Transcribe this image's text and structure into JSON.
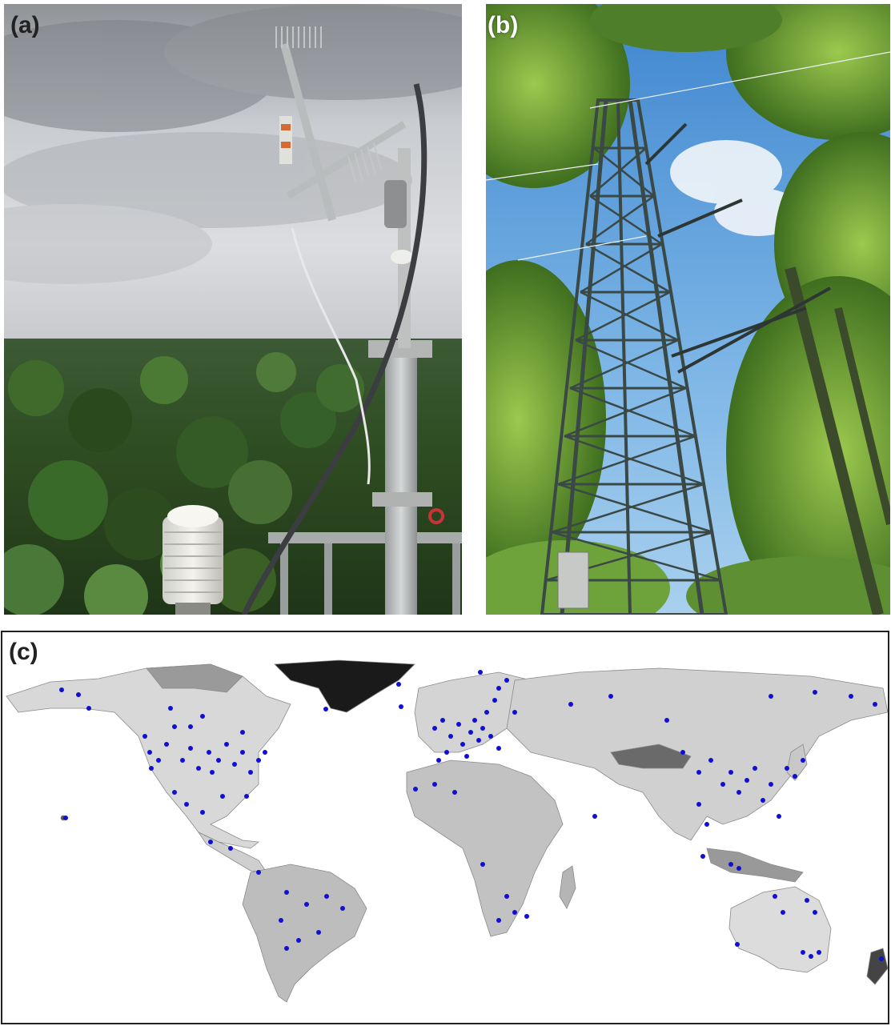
{
  "panels": {
    "a": {
      "label": "(a)",
      "scene": "eddy-covariance-mast-above-tropical-forest"
    },
    "b": {
      "label": "(b)",
      "scene": "scaffold-flux-tower-in-temperate-forest"
    },
    "c": {
      "label": "(c)",
      "scene": "world-map-of-flux-sites"
    }
  },
  "colors": {
    "sky_overcast": "#b9bcc0",
    "forest_dark": "#2e4a22",
    "sky_blue": "#5a9fd8",
    "foliage": "#6fa63a",
    "tower_steel": "#3b4a48",
    "site_dot": "#1010d0",
    "land_gray": "#d4d4d4"
  }
}
